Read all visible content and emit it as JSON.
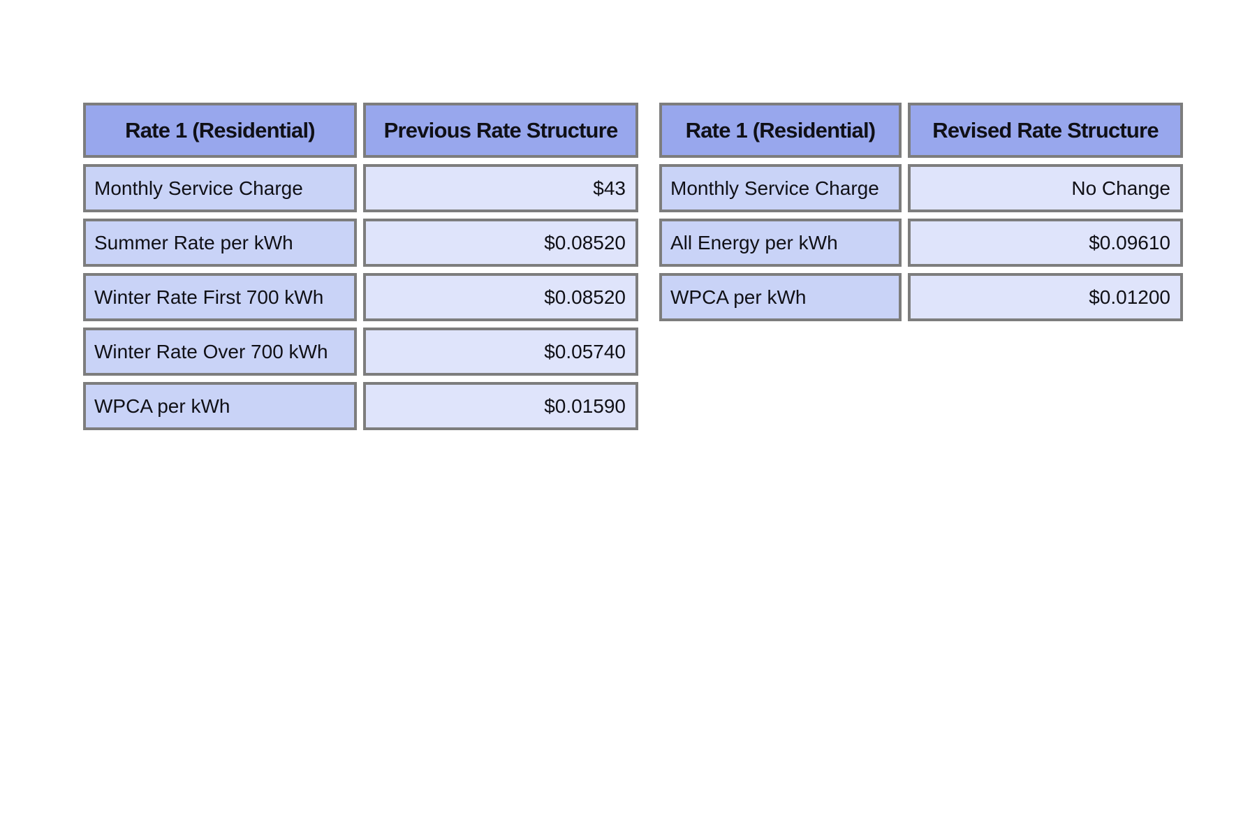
{
  "colors": {
    "header_bg": "#98a7ed",
    "label_bg": "#c9d3f7",
    "value_bg": "#dfe4fb",
    "border": "#7d7d7d",
    "text": "#101016",
    "page_bg": "#ffffff"
  },
  "chart_data": {
    "type": "table",
    "tables": [
      {
        "title_column": "Rate 1 (Residential)",
        "value_column": "Previous Rate Structure",
        "rows": [
          [
            "Monthly Service Charge",
            "$43"
          ],
          [
            "Summer Rate per kWh",
            "$0.08520"
          ],
          [
            "Winter Rate First 700 kWh",
            "$0.08520"
          ],
          [
            "Winter Rate Over 700 kWh",
            "$0.05740"
          ],
          [
            "WPCA per kWh",
            "$0.01590"
          ]
        ]
      },
      {
        "title_column": "Rate 1 (Residential)",
        "value_column": "Revised Rate Structure",
        "rows": [
          [
            "Monthly Service Charge",
            "No Change"
          ],
          [
            "All Energy per kWh",
            "$0.09610"
          ],
          [
            "WPCA per kWh",
            "$0.01200"
          ]
        ]
      }
    ]
  },
  "tables": [
    {
      "header": {
        "col1": "Rate 1 (Residential)",
        "col2": "Previous Rate Structure"
      },
      "rows": [
        {
          "label": "Monthly Service Charge",
          "value": "$43"
        },
        {
          "label": "Summer Rate per kWh",
          "value": "$0.08520"
        },
        {
          "label": "Winter Rate First 700 kWh",
          "value": "$0.08520"
        },
        {
          "label": "Winter Rate Over 700 kWh",
          "value": "$0.05740"
        },
        {
          "label": "WPCA per kWh",
          "value": "$0.01590"
        }
      ]
    },
    {
      "header": {
        "col1": "Rate 1 (Residential)",
        "col2": "Revised Rate Structure"
      },
      "rows": [
        {
          "label": "Monthly Service Charge",
          "value": "No Change"
        },
        {
          "label": "All Energy per kWh",
          "value": "$0.09610"
        },
        {
          "label": "WPCA per kWh",
          "value": "$0.01200"
        }
      ]
    }
  ]
}
